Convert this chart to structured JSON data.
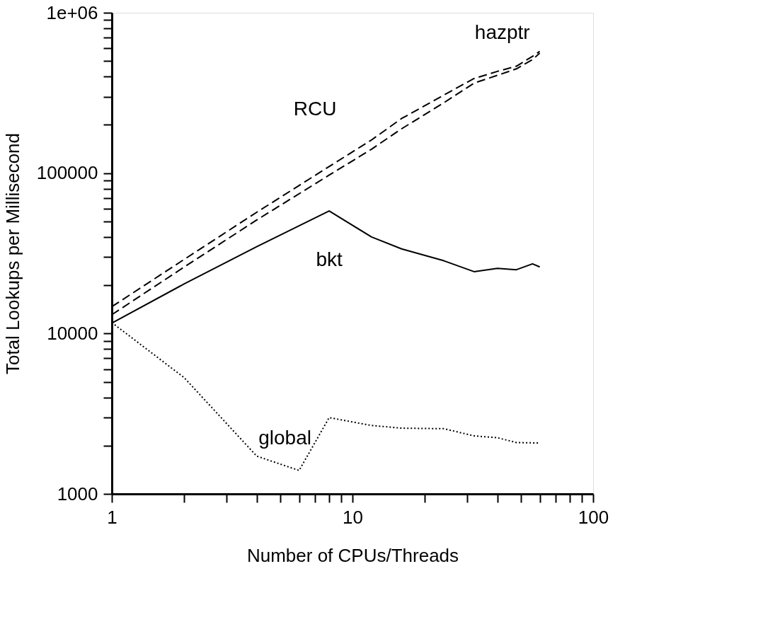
{
  "chart_data": {
    "type": "line",
    "xlabel": "Number of CPUs/Threads",
    "ylabel": "Total Lookups per Millisecond",
    "log": "xy",
    "grid": false,
    "marker": "none",
    "xlim": [
      1,
      100
    ],
    "ylim": [
      1000,
      1000000
    ],
    "xticks": [
      1,
      {
        "value": 2,
        "label": null
      },
      {
        "value": 3,
        "label": null
      },
      {
        "value": 4,
        "label": null
      },
      {
        "value": 5,
        "label": null
      },
      {
        "value": 6,
        "label": null
      },
      {
        "value": 7,
        "label": null
      },
      {
        "value": 8,
        "label": null
      },
      {
        "value": 9,
        "label": null
      },
      10,
      {
        "value": 20,
        "label": null
      },
      {
        "value": 30,
        "label": null
      },
      {
        "value": 40,
        "label": null
      },
      {
        "value": 50,
        "label": null
      },
      {
        "value": 60,
        "label": null
      },
      {
        "value": 70,
        "label": null
      },
      {
        "value": 80,
        "label": null
      },
      {
        "value": 90,
        "label": null
      },
      100
    ],
    "yticks": [
      1000,
      {
        "value": 2000,
        "label": null
      },
      {
        "value": 3000,
        "label": null
      },
      {
        "value": 4000,
        "label": null
      },
      {
        "value": 5000,
        "label": null
      },
      {
        "value": 6000,
        "label": null
      },
      {
        "value": 7000,
        "label": null
      },
      {
        "value": 8000,
        "label": null
      },
      {
        "value": 9000,
        "label": null
      },
      10000,
      {
        "value": 20000,
        "label": null
      },
      {
        "value": 30000,
        "label": null
      },
      {
        "value": 40000,
        "label": null
      },
      {
        "value": 50000,
        "label": null
      },
      {
        "value": 60000,
        "label": null
      },
      {
        "value": 70000,
        "label": null
      },
      {
        "value": 80000,
        "label": null
      },
      {
        "value": 90000,
        "label": null
      },
      100000,
      {
        "value": 200000,
        "label": null
      },
      {
        "value": 300000,
        "label": null
      },
      {
        "value": 400000,
        "label": null
      },
      {
        "value": 500000,
        "label": null
      },
      {
        "value": 600000,
        "label": null
      },
      {
        "value": 700000,
        "label": null
      },
      {
        "value": 800000,
        "label": null
      },
      {
        "value": 900000,
        "label": null
      },
      {
        "value": 1000000,
        "label": "1e+06"
      }
    ],
    "x": [
      1,
      2,
      4,
      8,
      12,
      16,
      24,
      32,
      40,
      48,
      56,
      60
    ],
    "series": [
      {
        "name": "RCU",
        "color": "#000000",
        "line_style": "dashed",
        "values": [
          14700,
          29000,
          57000,
          110000,
          161000,
          219000,
          307000,
          389000,
          431000,
          464000,
          535000,
          575000
        ]
      },
      {
        "name": "hazptr",
        "color": "#000000",
        "line_style": "dashed",
        "values": [
          13100,
          26000,
          51000,
          97200,
          141000,
          189000,
          275000,
          364000,
          407000,
          447000,
          510000,
          560000
        ]
      },
      {
        "name": "bkt",
        "color": "#000000",
        "line_style": "solid",
        "values": [
          11600,
          20400,
          34800,
          58100,
          40000,
          33700,
          28400,
          24300,
          25500,
          25000,
          27200,
          26000
        ]
      },
      {
        "name": "global",
        "color": "#000000",
        "line_style": "dotted",
        "values": [
          11700,
          5300,
          1720,
          1400,
          2990,
          2670,
          2570,
          2550,
          2300,
          2240,
          2090,
          2080,
          2080
        ],
        "x": [
          1,
          2,
          4,
          6,
          8,
          12,
          16,
          24,
          32,
          40,
          48,
          56,
          60
        ]
      }
    ]
  }
}
